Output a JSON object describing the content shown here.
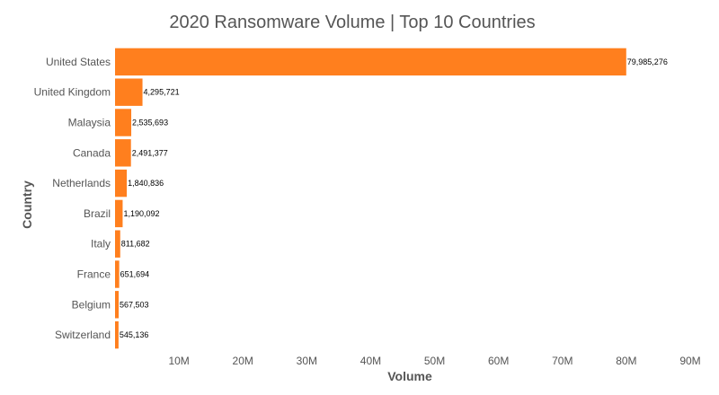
{
  "chart_data": {
    "type": "bar",
    "orientation": "horizontal",
    "title": "2020 Ransomware Volume | Top 10 Countries",
    "xlabel": "Volume",
    "ylabel": "Country",
    "categories": [
      "United States",
      "United Kingdom",
      "Malaysia",
      "Canada",
      "Netherlands",
      "Brazil",
      "Italy",
      "France",
      "Belgium",
      "Switzerland"
    ],
    "values": [
      79985276,
      4295721,
      2535693,
      2491377,
      1840836,
      1190092,
      811682,
      651694,
      567503,
      545136
    ],
    "data_labels": [
      "79,985,276",
      "4,295,721",
      "2,535,693",
      "2,491,377",
      "1,840,836",
      "1,190,092",
      "811,682",
      "651,694",
      "567,503",
      "545,136"
    ],
    "xlim": [
      0,
      90000000
    ],
    "x_ticks": [
      10000000,
      20000000,
      30000000,
      40000000,
      50000000,
      60000000,
      70000000,
      80000000,
      90000000
    ],
    "x_tick_labels": [
      "10M",
      "20M",
      "30M",
      "40M",
      "50M",
      "60M",
      "70M",
      "80M",
      "90M"
    ],
    "grid": false,
    "bar_color": "#ff7f1e"
  }
}
